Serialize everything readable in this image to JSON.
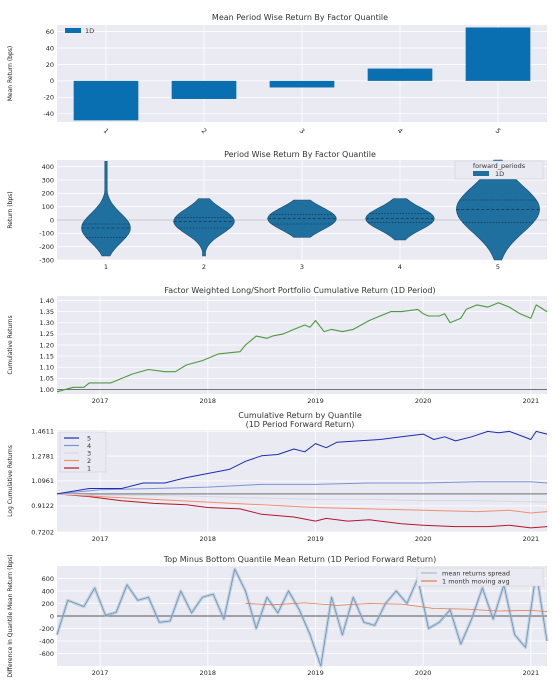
{
  "chart_data": [
    {
      "type": "bar",
      "title": "Mean Period Wise Return By Factor Quantile",
      "ylabel": "Mean Return (bps)",
      "xlabel": "",
      "categories": [
        "1",
        "2",
        "3",
        "4",
        "5"
      ],
      "series": [
        {
          "name": "1D",
          "values": [
            -48,
            -22,
            -8,
            15,
            65
          ]
        }
      ],
      "ylim": [
        -50,
        68
      ],
      "yticks": [
        -40,
        -20,
        0,
        20,
        40,
        60
      ],
      "legend": "top-left",
      "color": "#0a6fb0"
    },
    {
      "type": "violin",
      "title": "Period Wise Return By Factor Quantile",
      "ylabel": "Return (bps)",
      "categories": [
        "1",
        "2",
        "3",
        "4",
        "5"
      ],
      "legend_title": "forward_periods",
      "series": [
        {
          "name": "1D"
        }
      ],
      "ylim": [
        -300,
        450
      ],
      "yticks": [
        -300,
        -200,
        -100,
        0,
        100,
        200,
        300,
        400
      ],
      "distributions": [
        {
          "min": -270,
          "max": 440,
          "q1": -130,
          "median": -60,
          "q3": -30
        },
        {
          "min": -270,
          "max": 160,
          "q1": -60,
          "median": -10,
          "q3": 20
        },
        {
          "min": -130,
          "max": 150,
          "q1": -30,
          "median": 10,
          "q3": 40
        },
        {
          "min": -150,
          "max": 160,
          "q1": -20,
          "median": 10,
          "q3": 50
        },
        {
          "min": -300,
          "max": 450,
          "q1": -20,
          "median": 80,
          "q3": 150
        }
      ],
      "color": "#1f6f9f"
    },
    {
      "type": "line",
      "title": "Factor Weighted Long/Short Portfolio Cumulative Return (1D Period)",
      "ylabel": "Cumulative Returns",
      "x_ticks": [
        "2017",
        "2018",
        "2019",
        "2020",
        "2021"
      ],
      "x_range": [
        2016.6,
        2021.15
      ],
      "ylim": [
        0.98,
        1.42
      ],
      "yticks": [
        1.0,
        1.05,
        1.1,
        1.15,
        1.2,
        1.25,
        1.3,
        1.35,
        1.4
      ],
      "series": [
        {
          "x": [
            2016.6,
            2016.75,
            2016.85,
            2016.9,
            2017.1,
            2017.3,
            2017.45,
            2017.6,
            2017.7,
            2017.8,
            2017.95,
            2018.1,
            2018.3,
            2018.35,
            2018.45,
            2018.55,
            2018.6,
            2018.7,
            2018.8,
            2018.9,
            2018.95,
            2019.0,
            2019.08,
            2019.15,
            2019.25,
            2019.35,
            2019.5,
            2019.6,
            2019.7,
            2019.8,
            2019.95,
            2020.0,
            2020.05,
            2020.15,
            2020.2,
            2020.25,
            2020.35,
            2020.4,
            2020.5,
            2020.6,
            2020.7,
            2020.8,
            2020.9,
            2021.0,
            2021.05,
            2021.15
          ],
          "y": [
            0.99,
            1.01,
            1.01,
            1.03,
            1.03,
            1.07,
            1.09,
            1.08,
            1.08,
            1.11,
            1.13,
            1.16,
            1.17,
            1.2,
            1.24,
            1.23,
            1.24,
            1.25,
            1.27,
            1.29,
            1.28,
            1.31,
            1.26,
            1.27,
            1.26,
            1.27,
            1.31,
            1.33,
            1.35,
            1.35,
            1.36,
            1.34,
            1.33,
            1.33,
            1.34,
            1.3,
            1.32,
            1.36,
            1.38,
            1.37,
            1.39,
            1.37,
            1.34,
            1.32,
            1.38,
            1.35
          ],
          "color": "#4c9a3f"
        }
      ],
      "baseline": 1.0
    },
    {
      "type": "line",
      "title": "Cumulative Return by Quantile",
      "subtitle": "(1D Period Forward Return)",
      "ylabel": "Log Cumulative Returns",
      "x_ticks": [
        "2017",
        "2018",
        "2019",
        "2020",
        "2021"
      ],
      "x_range": [
        2016.6,
        2021.15
      ],
      "yticks_labels": [
        "0.7202",
        "0.9122",
        "1.0961",
        "1.2781",
        "1.4611"
      ],
      "yticks": [
        0.7202,
        0.9122,
        1.0961,
        1.2781,
        1.4611
      ],
      "ylim": [
        0.72,
        1.47
      ],
      "legend": "top-left",
      "baseline": 1.0,
      "series": [
        {
          "name": "5",
          "color": "#1b2db4",
          "x": [
            2016.6,
            2016.9,
            2017.2,
            2017.4,
            2017.6,
            2017.8,
            2018.0,
            2018.2,
            2018.35,
            2018.5,
            2018.65,
            2018.8,
            2018.9,
            2019.0,
            2019.1,
            2019.2,
            2019.4,
            2019.6,
            2019.8,
            2020.0,
            2020.1,
            2020.2,
            2020.3,
            2020.45,
            2020.6,
            2020.7,
            2020.8,
            2020.9,
            2021.0,
            2021.05,
            2021.15
          ],
          "y": [
            1.0,
            1.04,
            1.04,
            1.08,
            1.08,
            1.12,
            1.15,
            1.18,
            1.24,
            1.28,
            1.29,
            1.33,
            1.31,
            1.37,
            1.34,
            1.38,
            1.39,
            1.4,
            1.42,
            1.44,
            1.4,
            1.42,
            1.39,
            1.42,
            1.46,
            1.45,
            1.46,
            1.43,
            1.4,
            1.46,
            1.44
          ]
        },
        {
          "name": "4",
          "color": "#7c92d8",
          "x": [
            2016.6,
            2017.0,
            2017.5,
            2018.0,
            2018.5,
            2019.0,
            2019.5,
            2020.0,
            2020.5,
            2021.0,
            2021.15
          ],
          "y": [
            1.0,
            1.03,
            1.04,
            1.05,
            1.07,
            1.07,
            1.08,
            1.08,
            1.09,
            1.09,
            1.08
          ]
        },
        {
          "name": "3",
          "color": "#d7d7e6",
          "x": [
            2016.6,
            2017.0,
            2017.5,
            2018.0,
            2018.5,
            2019.0,
            2019.5,
            2020.0,
            2020.5,
            2021.15
          ],
          "y": [
            1.0,
            0.99,
            0.99,
            0.98,
            0.97,
            0.96,
            0.96,
            0.95,
            0.95,
            0.94
          ]
        },
        {
          "name": "2",
          "color": "#f09070",
          "x": [
            2016.6,
            2017.0,
            2017.5,
            2018.0,
            2018.5,
            2019.0,
            2019.5,
            2020.0,
            2020.5,
            2020.8,
            2021.0,
            2021.15
          ],
          "y": [
            1.0,
            0.98,
            0.96,
            0.94,
            0.92,
            0.9,
            0.89,
            0.88,
            0.87,
            0.88,
            0.86,
            0.87
          ]
        },
        {
          "name": "1",
          "color": "#b2182b",
          "x": [
            2016.6,
            2016.9,
            2017.2,
            2017.5,
            2017.8,
            2018.0,
            2018.3,
            2018.5,
            2018.8,
            2019.0,
            2019.1,
            2019.3,
            2019.5,
            2019.8,
            2020.0,
            2020.3,
            2020.6,
            2020.8,
            2021.0,
            2021.15
          ],
          "y": [
            1.0,
            0.98,
            0.95,
            0.93,
            0.92,
            0.9,
            0.89,
            0.85,
            0.83,
            0.8,
            0.82,
            0.8,
            0.81,
            0.78,
            0.77,
            0.76,
            0.76,
            0.77,
            0.75,
            0.76
          ]
        }
      ]
    },
    {
      "type": "line",
      "title": "Top Minus Bottom Quantile Mean Return (1D Period Forward Return)",
      "ylabel": "Difference In Quantile Mean Return (bps)",
      "x_ticks": [
        "2017",
        "2018",
        "2019",
        "2020",
        "2021"
      ],
      "x_range": [
        2016.6,
        2021.15
      ],
      "ylim": [
        -800,
        800
      ],
      "yticks": [
        -600,
        -400,
        -200,
        0,
        200,
        400,
        600
      ],
      "legend": "top-right",
      "baseline": 0,
      "series": [
        {
          "name": "mean returns spread",
          "color": "#9fbcd4",
          "x": [
            2016.6,
            2016.7,
            2016.85,
            2016.95,
            2017.05,
            2017.15,
            2017.25,
            2017.35,
            2017.45,
            2017.55,
            2017.65,
            2017.75,
            2017.85,
            2017.95,
            2018.05,
            2018.15,
            2018.25,
            2018.35,
            2018.45,
            2018.55,
            2018.65,
            2018.75,
            2018.85,
            2018.95,
            2019.05,
            2019.15,
            2019.25,
            2019.35,
            2019.45,
            2019.55,
            2019.65,
            2019.75,
            2019.85,
            2019.95,
            2020.05,
            2020.15,
            2020.25,
            2020.35,
            2020.45,
            2020.55,
            2020.65,
            2020.75,
            2020.85,
            2020.95,
            2021.05,
            2021.15
          ],
          "y": [
            -300,
            250,
            150,
            450,
            10,
            60,
            500,
            250,
            300,
            -100,
            -80,
            400,
            50,
            300,
            350,
            -50,
            750,
            400,
            -200,
            300,
            50,
            400,
            100,
            -300,
            -800,
            300,
            -300,
            300,
            -100,
            -150,
            200,
            400,
            200,
            600,
            -200,
            -100,
            100,
            -450,
            -50,
            450,
            -50,
            500,
            -300,
            -500,
            700,
            -400
          ]
        },
        {
          "name": "1 month moving avg",
          "color": "#e07a50",
          "x": [
            2018.35,
            2018.6,
            2018.9,
            2019.2,
            2019.5,
            2019.8,
            2020.1,
            2020.4,
            2020.7,
            2021.0,
            2021.15
          ],
          "y": [
            200,
            180,
            210,
            170,
            200,
            190,
            120,
            110,
            80,
            90,
            70
          ]
        }
      ]
    }
  ]
}
